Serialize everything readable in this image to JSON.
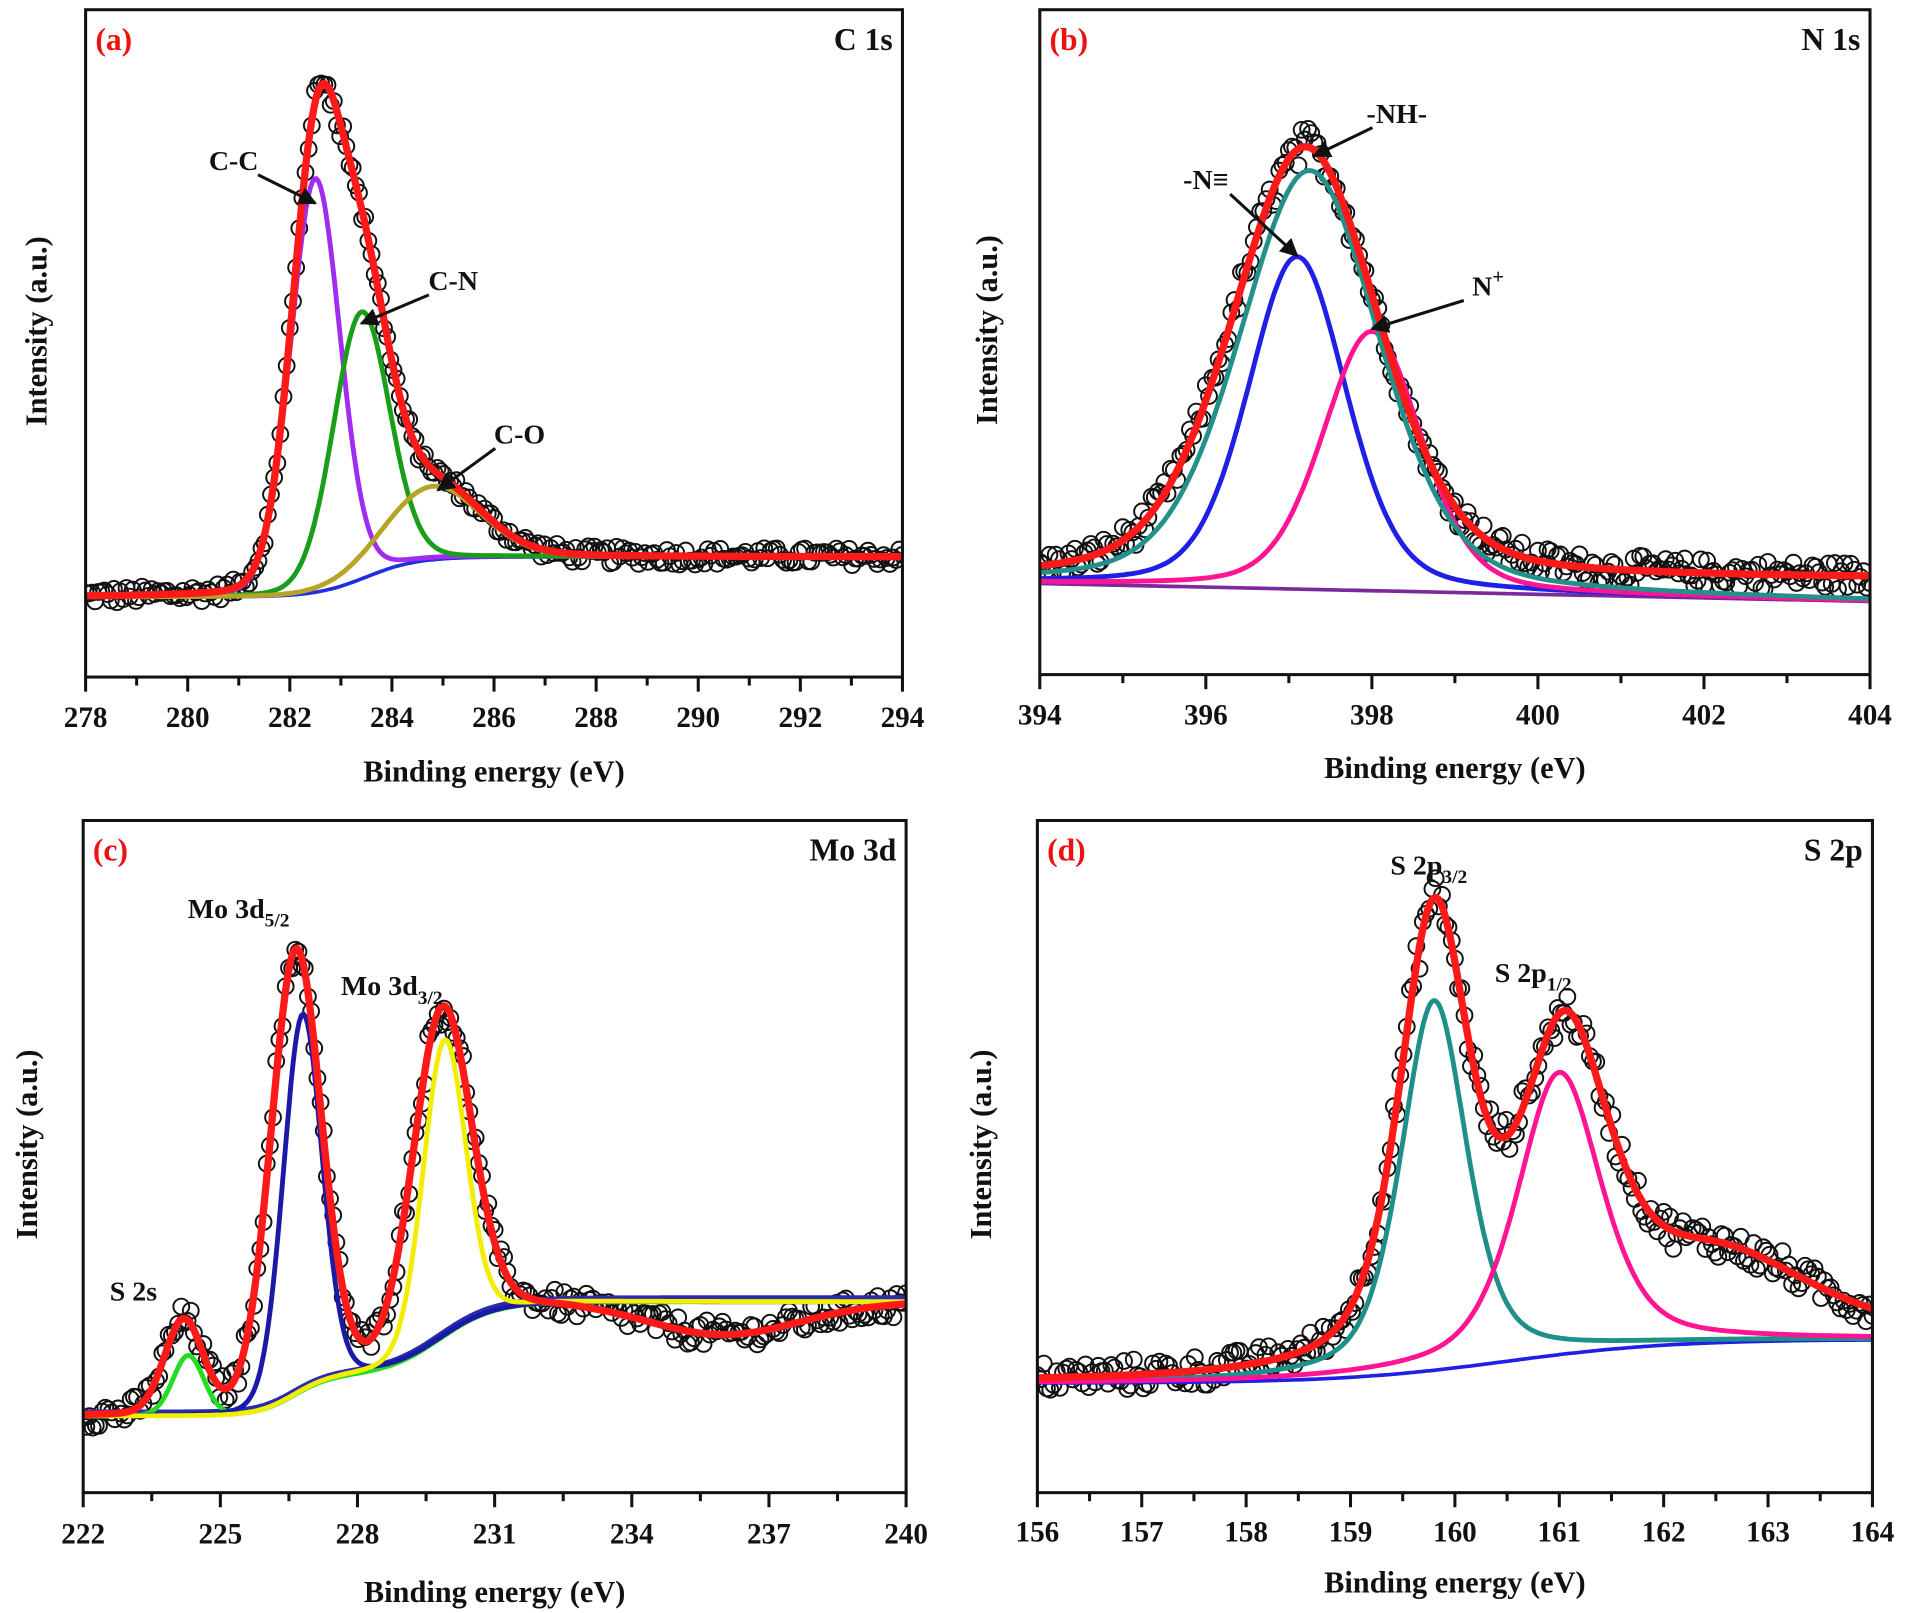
{
  "chart_data": [
    {
      "type": "line",
      "panel_label": "(a)",
      "title": "C 1s",
      "xlabel": "Binding energy (eV)",
      "ylabel": "Intensity (a.u.)",
      "xlim": [
        278,
        294
      ],
      "xticks": [
        278,
        280,
        282,
        284,
        286,
        288,
        290,
        292,
        294
      ],
      "minor_tick_step": 1,
      "ylim": [
        0,
        100
      ],
      "grid": false,
      "peak_shape_lorentz_fraction": 0.1,
      "background": {
        "color": "#1f2fe0",
        "start": 12,
        "steps": [
          {
            "center": 283.5,
            "amount": 6,
            "width": 0.5
          }
        ]
      },
      "components": [
        {
          "name": "C-C",
          "color": "#a12cf0",
          "center": 282.5,
          "height": 62,
          "fwhm": 1.15
        },
        {
          "name": "C-N",
          "color": "#1a9e1a",
          "center": 283.4,
          "height": 40,
          "fwhm": 1.3
        },
        {
          "name": "C-O",
          "color": "#b5a428",
          "center": 284.8,
          "height": 11,
          "fwhm": 2.2
        }
      ],
      "envelope": {
        "color": "#ff1a1a"
      },
      "data_points_color": "#111111",
      "annotations": [
        {
          "text": "C-C",
          "x": 280.9,
          "y": 76,
          "arrow_to": [
            282.5,
            71
          ]
        },
        {
          "text": "C-N",
          "x": 285.2,
          "y": 58,
          "arrow_to": [
            283.4,
            53
          ]
        },
        {
          "text": "C-O",
          "x": 286.5,
          "y": 35,
          "arrow_to": [
            284.9,
            28
          ]
        }
      ]
    },
    {
      "type": "line",
      "panel_label": "(b)",
      "title": "N 1s",
      "xlabel": "Binding energy (eV)",
      "ylabel": "Intensity (a.u.)",
      "xlim": [
        394,
        404
      ],
      "xticks": [
        394,
        396,
        398,
        400,
        402,
        404
      ],
      "minor_tick_step": 1,
      "ylim": [
        0,
        100
      ],
      "grid": false,
      "peak_shape_lorentz_fraction": 0.3,
      "background": {
        "color": "#7a2a9a",
        "start": 13.7,
        "end": 11,
        "steps": []
      },
      "components": [
        {
          "name": "-N≡",
          "color": "#1f1fe6",
          "center": 397.1,
          "height": 50,
          "fwhm": 1.4
        },
        {
          "name": "N+",
          "color": "#ff1493",
          "center": 398.0,
          "height": 39,
          "fwhm": 1.4
        },
        {
          "name": "-NH-",
          "color": "#23918a",
          "center": 397.25,
          "height": 63,
          "fwhm": 2.0
        }
      ],
      "envelope": {
        "color": "#ff1a1a",
        "peaks": [
          {
            "center": 397.2,
            "height": 65,
            "fwhm": 2.1
          }
        ],
        "offset_flat": 14.4
      },
      "data_points_color": "#111111",
      "annotations": [
        {
          "text": "-N≡",
          "x": 396.0,
          "y": 73,
          "arrow_to": [
            397.1,
            63
          ]
        },
        {
          "text": "-NH-",
          "x": 398.3,
          "y": 83,
          "arrow_to": [
            397.3,
            78
          ]
        },
        {
          "text": "N",
          "sup": "+",
          "x": 399.4,
          "y": 57,
          "arrow_to": [
            398.0,
            52
          ]
        }
      ]
    },
    {
      "type": "line",
      "panel_label": "(c)",
      "title": "Mo 3d",
      "xlabel": "Binding energy (eV)",
      "ylabel": "Intensity (a.u.)",
      "xlim": [
        222,
        240
      ],
      "xticks": [
        222,
        225,
        228,
        231,
        234,
        237,
        240
      ],
      "minor_tick_step": 1.5,
      "ylim": [
        0,
        100
      ],
      "grid": false,
      "peak_shape_lorentz_fraction": 0.1,
      "background": {
        "color": "#ff3aa0",
        "color2": "#2a2ab0",
        "start": 11.4,
        "steps": [
          {
            "center": 226.6,
            "amount": 6,
            "width": 0.4
          },
          {
            "center": 229.8,
            "amount": 11,
            "width": 0.6
          }
        ]
      },
      "components": [
        {
          "name": "S 2s",
          "color": "#22dd22",
          "center": 224.3,
          "height": 9,
          "fwhm": 0.8
        },
        {
          "name": "Mo 3d5/2",
          "color": "#1a1aa6",
          "center": 226.8,
          "height": 56,
          "fwhm": 1.0
        },
        {
          "name": "Mo 3d3/2",
          "color": "#f2ee00",
          "center": 229.9,
          "height": 44,
          "fwhm": 1.1
        }
      ],
      "envelope": {
        "color": "#ff1a1a",
        "peaks": [
          {
            "center": 224.2,
            "height": 14,
            "fwhm": 1.0
          },
          {
            "center": 226.65,
            "height": 66,
            "fwhm": 1.3
          },
          {
            "center": 229.85,
            "height": 49,
            "fwhm": 1.5
          },
          {
            "center": 236.0,
            "height": -5,
            "fwhm": 4.0
          }
        ]
      },
      "data_points_color": "#111111",
      "annotations": [
        {
          "text": "S 2s",
          "x": 223.1,
          "y": 28.6
        },
        {
          "text": "Mo 3d",
          "sub": "5/2",
          "x": 225.4,
          "y": 85.5
        },
        {
          "text": "Mo 3d",
          "sub": "3/2",
          "x": 228.75,
          "y": 74
        }
      ]
    },
    {
      "type": "line",
      "panel_label": "(d)",
      "title": "S 2p",
      "xlabel": "Binding energy (eV)",
      "ylabel": "Intensity (a.u.)",
      "xlim": [
        156,
        164
      ],
      "xticks": [
        156,
        157,
        158,
        159,
        160,
        161,
        162,
        163,
        164
      ],
      "minor_tick_step": 0.5,
      "ylim": [
        0,
        100
      ],
      "grid": false,
      "peak_shape_lorentz_fraction": 0.5,
      "background": {
        "color": "#1f1fe6",
        "start": 16.3,
        "steps": [
          {
            "center": 160.5,
            "amount": 6.5,
            "width": 0.8
          }
        ]
      },
      "components": [
        {
          "name": "S 2p3/2",
          "color": "#1f8f8a",
          "center": 159.8,
          "height": 55,
          "fwhm": 0.75
        },
        {
          "name": "S 2p1/2",
          "color": "#ff1493",
          "center": 161.0,
          "height": 42,
          "fwhm": 0.95
        }
      ],
      "envelope": {
        "color": "#ff1a1a",
        "peaks": [
          {
            "center": 159.8,
            "height": 66,
            "fwhm": 0.8
          },
          {
            "center": 161.05,
            "height": 44,
            "fwhm": 1.0
          },
          {
            "center": 162.5,
            "height": 12,
            "fwhm": 2.2
          }
        ]
      },
      "data_points_color": "#111111",
      "annotations": [
        {
          "text": "S 2p",
          "sub": "3/2",
          "x": 159.75,
          "y": 92
        },
        {
          "text": "S 2p",
          "sub": "1/2",
          "x": 160.75,
          "y": 76
        }
      ]
    }
  ]
}
